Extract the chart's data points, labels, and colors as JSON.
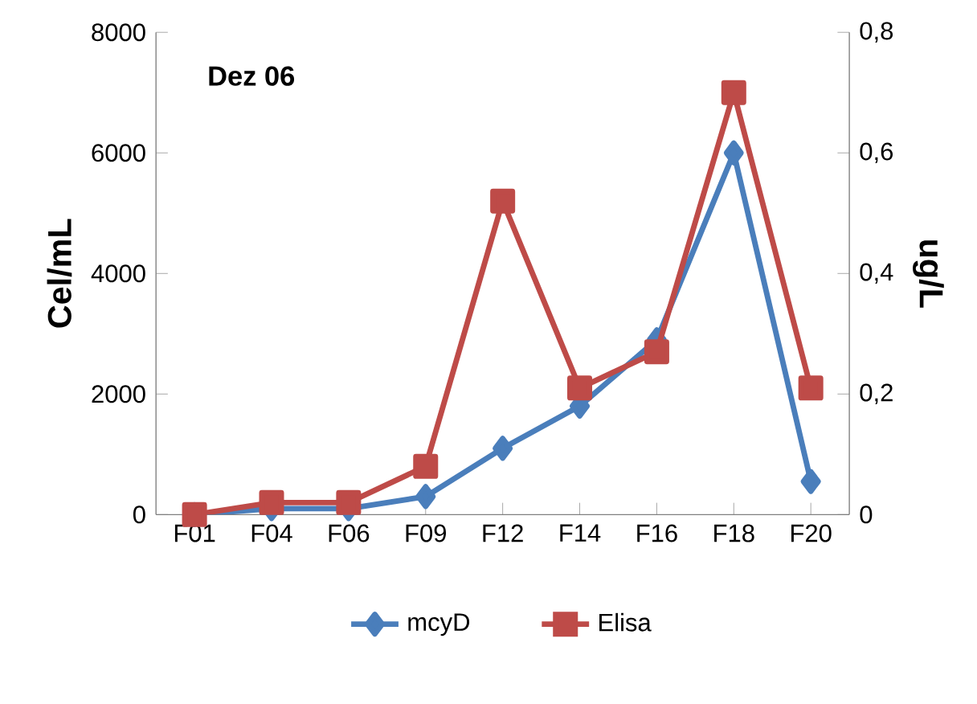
{
  "chart_data": {
    "type": "line",
    "annotations": [
      "Dez 06"
    ],
    "ylabel": "Cel/mL",
    "y2label": "ug/L",
    "categories": [
      "F01",
      "F04",
      "F06",
      "F09",
      "F12",
      "F14",
      "F16",
      "F18",
      "F20"
    ],
    "series": [
      {
        "name": "mcyD",
        "color": "#4a7ebb",
        "marker": "diamond",
        "values": [
          0,
          100,
          100,
          300,
          1100,
          1800,
          2900,
          6000,
          550
        ]
      },
      {
        "name": "Elisa",
        "color": "#be4b48",
        "marker": "square",
        "axis": "y2",
        "values": [
          0,
          0.02,
          0.02,
          0.08,
          0.52,
          0.21,
          0.27,
          0.7,
          0.21
        ]
      }
    ],
    "ylim": [
      0,
      8000
    ],
    "yticks": [
      0,
      2000,
      4000,
      6000,
      8000
    ],
    "y2lim": [
      0,
      0.8
    ],
    "y2ticks": [
      0,
      {
        "value": 0.2,
        "label": "0,2"
      },
      {
        "value": 0.4,
        "label": "0,4"
      },
      {
        "value": 0.6,
        "label": "0,6"
      },
      {
        "value": 0.8,
        "label": "0,8"
      }
    ],
    "grid": false,
    "legend": "bottom"
  }
}
